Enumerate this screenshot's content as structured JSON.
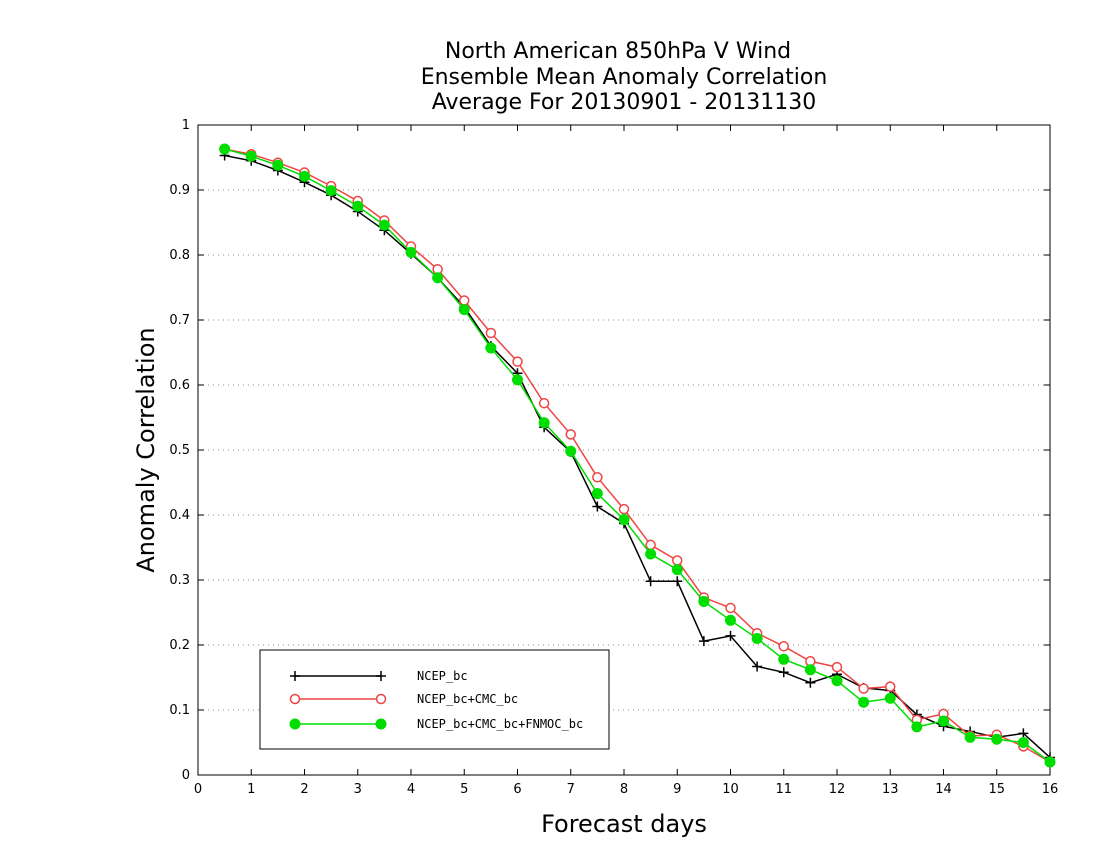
{
  "chart_data": {
    "type": "line",
    "title": [
      "North American 850hPa V Wind",
      "Ensemble Mean Anomaly Correlation",
      "Average For 20130901 - 20131130"
    ],
    "xlabel": "Forecast days",
    "ylabel": "Anomaly Correlation",
    "xlim": [
      0,
      16
    ],
    "ylim": [
      0,
      1
    ],
    "x_ticks": [
      "0",
      "1",
      "2",
      "3",
      "4",
      "5",
      "6",
      "7",
      "8",
      "9",
      "10",
      "11",
      "12",
      "13",
      "14",
      "15",
      "16"
    ],
    "y_ticks": [
      "0",
      "0.1",
      "0.2",
      "0.3",
      "0.4",
      "0.5",
      "0.6",
      "0.7",
      "0.8",
      "0.9",
      "1"
    ],
    "grid": "horizontal dotted",
    "legend_position": "bottom-left",
    "x": [
      0.5,
      1,
      1.5,
      2,
      2.5,
      3,
      3.5,
      4,
      4.5,
      5,
      5.5,
      6,
      6.5,
      7,
      7.5,
      8,
      8.5,
      9,
      9.5,
      10,
      10.5,
      11,
      11.5,
      12,
      12.5,
      13,
      13.5,
      14,
      14.5,
      15,
      15.5,
      16
    ],
    "series": [
      {
        "name": "NCEP_bc",
        "color": "#000000",
        "marker": "plus",
        "values": [
          0.953,
          0.945,
          0.93,
          0.912,
          0.892,
          0.867,
          0.838,
          0.802,
          0.765,
          0.72,
          0.66,
          0.618,
          0.535,
          0.497,
          0.413,
          0.387,
          0.298,
          0.298,
          0.206,
          0.214,
          0.167,
          0.158,
          0.142,
          0.155,
          0.134,
          0.13,
          0.093,
          0.075,
          0.067,
          0.058,
          0.064,
          0.027
        ]
      },
      {
        "name": "NCEP_bc+CMC_bc",
        "color": "#ee4444",
        "marker": "open-circle",
        "values": [
          0.963,
          0.955,
          0.942,
          0.927,
          0.906,
          0.883,
          0.853,
          0.813,
          0.778,
          0.73,
          0.68,
          0.636,
          0.572,
          0.524,
          0.458,
          0.409,
          0.354,
          0.33,
          0.273,
          0.257,
          0.218,
          0.198,
          0.175,
          0.166,
          0.133,
          0.136,
          0.085,
          0.094,
          0.06,
          0.062,
          0.044,
          0.02
        ]
      },
      {
        "name": "NCEP_bc+CMC_bc+FNMOC_bc",
        "color": "#00dd00",
        "marker": "filled-circle",
        "values": [
          0.963,
          0.952,
          0.938,
          0.921,
          0.899,
          0.875,
          0.846,
          0.804,
          0.765,
          0.716,
          0.657,
          0.608,
          0.542,
          0.498,
          0.433,
          0.393,
          0.34,
          0.316,
          0.267,
          0.238,
          0.21,
          0.178,
          0.162,
          0.145,
          0.112,
          0.118,
          0.074,
          0.083,
          0.058,
          0.055,
          0.05,
          0.02
        ]
      }
    ]
  }
}
